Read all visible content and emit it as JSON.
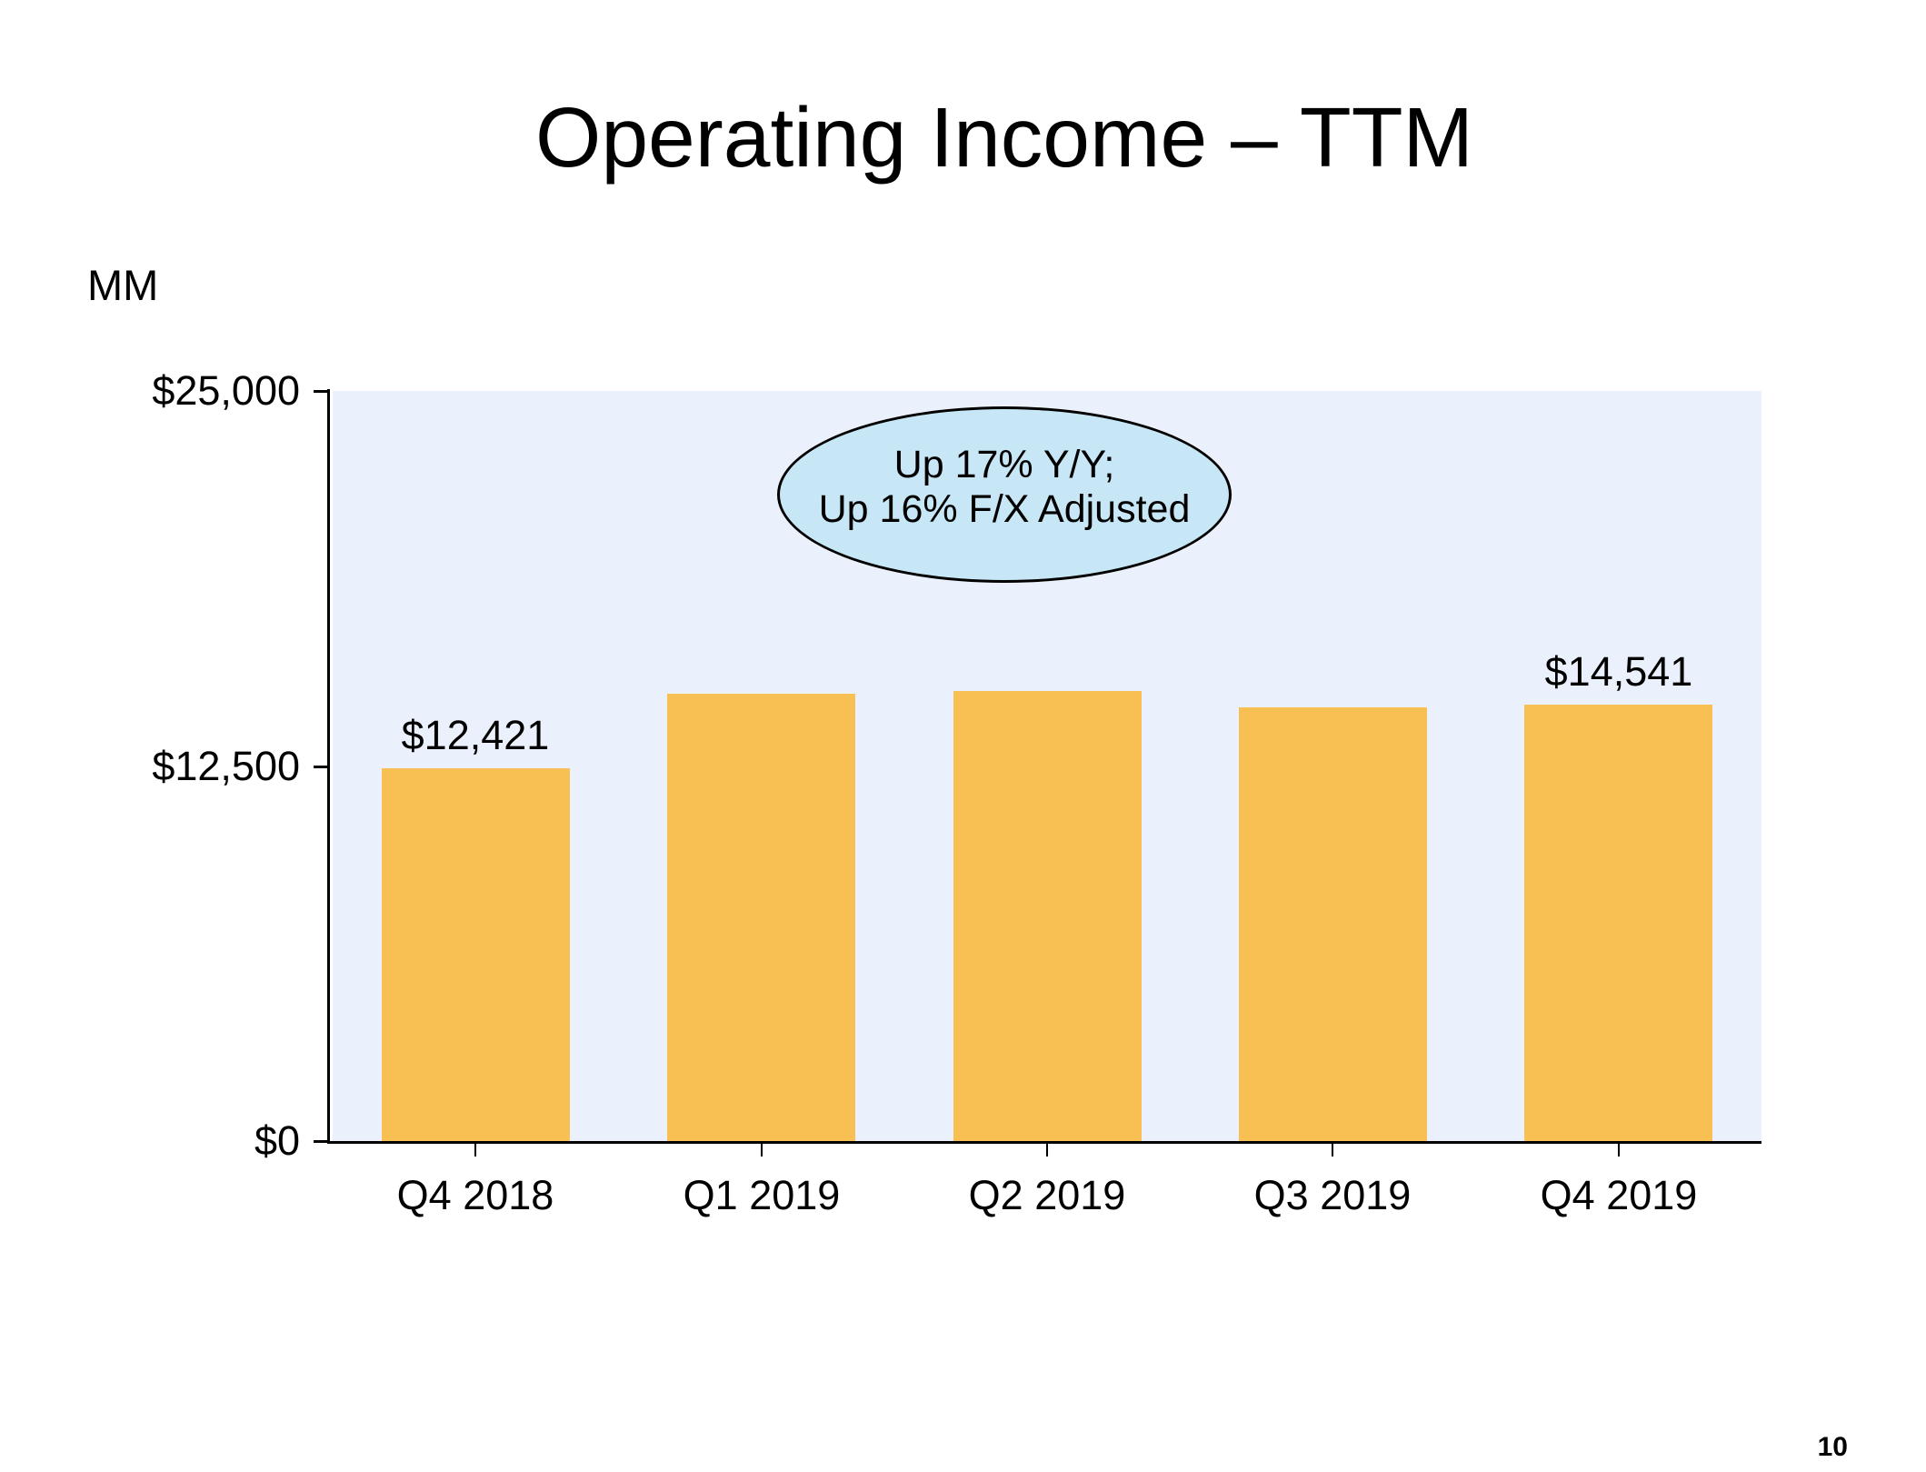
{
  "title": "Operating Income – TTM",
  "unit_label": "MM",
  "annotation": {
    "line1": "Up 17% Y/Y;",
    "line2": "Up 16% F/X Adjusted",
    "fill": "#C7E6F6",
    "border_color": "#000000"
  },
  "page": {
    "number": "10"
  },
  "chart_data": {
    "type": "bar",
    "title": "Operating Income – TTM",
    "ylabel": "MM",
    "categories": [
      "Q4 2018",
      "Q1 2019",
      "Q2 2019",
      "Q3 2019",
      "Q4 2019"
    ],
    "values": [
      12421,
      14900,
      15000,
      14450,
      14541
    ],
    "bar_labels": [
      "$12,421",
      "",
      "",
      "",
      "$14,541"
    ],
    "ylim": [
      0,
      25000
    ],
    "yticks": [
      {
        "value": 0,
        "label": "$0"
      },
      {
        "value": 12500,
        "label": "$12,500"
      },
      {
        "value": 25000,
        "label": "$25,000"
      }
    ],
    "grid": false,
    "legend": "none",
    "colors": {
      "bar": "#F8C052",
      "plot_background": "#EAF1FC",
      "axis": "#000000",
      "text": "#000000"
    }
  }
}
